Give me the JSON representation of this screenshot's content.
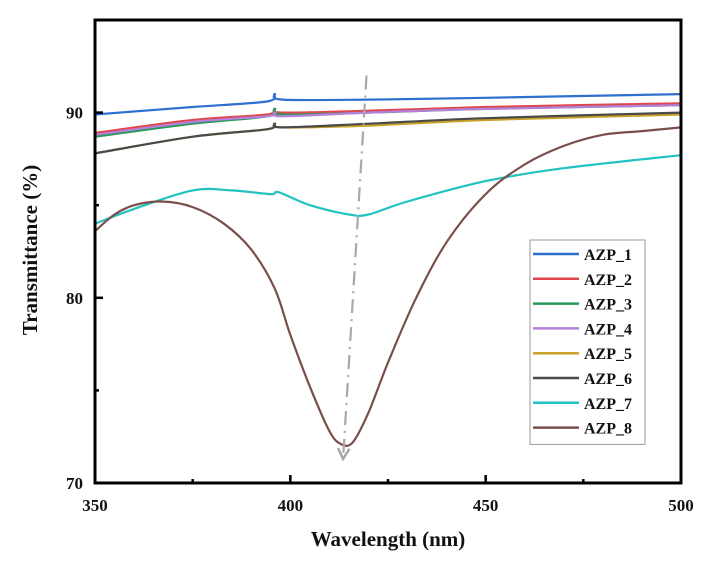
{
  "chart_data": {
    "type": "line",
    "title": "",
    "xlabel": "Wavelength (nm)",
    "ylabel": "Transmittance (%)",
    "xlim": [
      350,
      500
    ],
    "ylim": [
      70,
      95
    ],
    "xticks": [
      350,
      400,
      450,
      500
    ],
    "xticks_minor": [
      375,
      425,
      475
    ],
    "yticks": [
      70,
      80,
      90
    ],
    "yticks_minor": [
      75,
      85
    ],
    "grid": false,
    "legend_position": "center-right",
    "series": [
      {
        "name": "AZP_1",
        "color": "#2e6fd0",
        "x": [
          350,
          375,
          394,
          396,
          398,
          420,
          450,
          500
        ],
        "y": [
          89.9,
          90.3,
          90.6,
          91.0,
          90.7,
          90.7,
          90.8,
          91.0
        ]
      },
      {
        "name": "AZP_2",
        "color": "#e0474c",
        "x": [
          350,
          375,
          394,
          396,
          398,
          420,
          450,
          500
        ],
        "y": [
          88.9,
          89.6,
          89.9,
          90.2,
          90.0,
          90.1,
          90.3,
          90.5
        ]
      },
      {
        "name": "AZP_3",
        "color": "#2a9a5c",
        "x": [
          350,
          375,
          394,
          396,
          398,
          420,
          450,
          500
        ],
        "y": [
          88.7,
          89.4,
          89.8,
          90.2,
          89.9,
          90.0,
          90.2,
          90.4
        ]
      },
      {
        "name": "AZP_4",
        "color": "#b77fd9",
        "x": [
          350,
          375,
          394,
          396,
          398,
          420,
          450,
          500
        ],
        "y": [
          88.8,
          89.5,
          89.8,
          90.0,
          89.8,
          90.0,
          90.2,
          90.4
        ]
      },
      {
        "name": "AZP_5",
        "color": "#c9a227",
        "x": [
          350,
          375,
          394,
          396,
          398,
          420,
          450,
          500
        ],
        "y": [
          87.8,
          88.7,
          89.1,
          89.4,
          89.2,
          89.3,
          89.6,
          89.9
        ]
      },
      {
        "name": "AZP_6",
        "color": "#4a4a4a",
        "x": [
          350,
          375,
          394,
          396,
          398,
          420,
          450,
          500
        ],
        "y": [
          87.8,
          88.7,
          89.1,
          89.4,
          89.2,
          89.4,
          89.7,
          90.0
        ]
      },
      {
        "name": "AZP_7",
        "color": "#22c2c2",
        "x": [
          350,
          360,
          375,
          385,
          395,
          397,
          405,
          415,
          420,
          430,
          450,
          470,
          500
        ],
        "y": [
          84.0,
          84.8,
          85.8,
          85.8,
          85.6,
          85.7,
          85.0,
          84.5,
          84.5,
          85.2,
          86.3,
          87.0,
          87.7
        ]
      },
      {
        "name": "AZP_8",
        "color": "#7a4f4b",
        "x": [
          350,
          355,
          360,
          367,
          375,
          383,
          390,
          396,
          400,
          405,
          410,
          413,
          416,
          420,
          425,
          432,
          440,
          450,
          460,
          470,
          480,
          490,
          500
        ],
        "y": [
          83.6,
          84.5,
          85.0,
          85.2,
          84.9,
          84.0,
          82.6,
          80.5,
          78.0,
          75.2,
          72.8,
          72.1,
          72.2,
          73.8,
          76.5,
          79.9,
          83.0,
          85.6,
          87.2,
          88.2,
          88.8,
          89.0,
          89.2
        ]
      }
    ],
    "annotations": [
      {
        "type": "arrow",
        "style": "dash-dot",
        "color": "#a8a8a8",
        "from": [
          419.5,
          92.0
        ],
        "to": [
          413.5,
          71.3
        ],
        "meaning": "trend of decreasing transmittance"
      }
    ]
  }
}
